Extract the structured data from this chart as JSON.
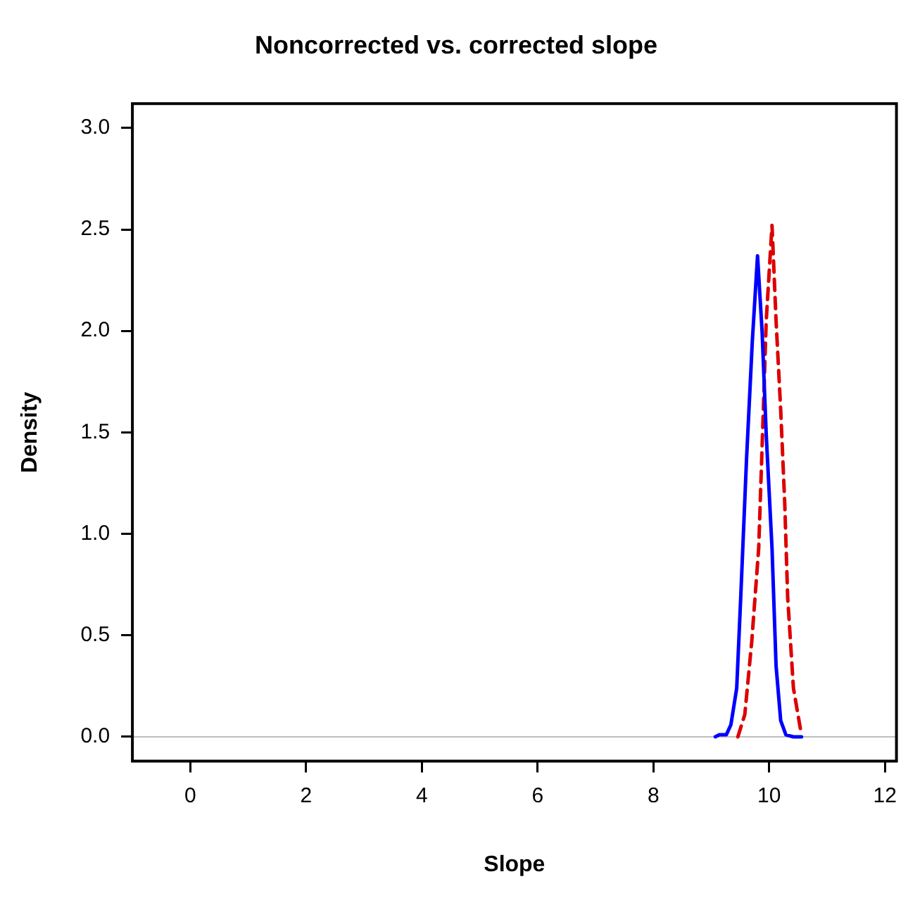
{
  "chart_data": {
    "type": "line",
    "title": "Noncorrected vs. corrected slope",
    "xlabel": "Slope",
    "ylabel": "Density",
    "xlim": [
      -1,
      12.2
    ],
    "xticks": [
      0,
      2,
      4,
      6,
      8,
      10,
      12
    ],
    "ylim": [
      -0.12,
      3.12
    ],
    "yticks": [
      {
        "value": 0,
        "label": "0.0"
      },
      {
        "value": 0.5,
        "label": "0.5"
      },
      {
        "value": 1,
        "label": "1.0"
      },
      {
        "value": 1.5,
        "label": "1.5"
      },
      {
        "value": 2,
        "label": "2.0"
      },
      {
        "value": 2.5,
        "label": "2.5"
      },
      {
        "value": 3,
        "label": "3.0"
      }
    ],
    "grid": false,
    "legend": false,
    "marker": "none",
    "ref_lines": [
      {
        "axis": "y",
        "value": 0,
        "color": "#bebebe",
        "line_style": "solid"
      }
    ],
    "series": [
      {
        "color": "#0000ff",
        "line_style": "solid",
        "x": [
          9.07,
          9.14,
          9.26,
          9.34,
          9.44,
          9.51,
          9.61,
          9.71,
          9.8,
          9.88,
          9.95,
          10.05,
          10.12,
          10.2,
          10.29,
          10.42,
          10.56
        ],
        "values": [
          0,
          0.01,
          0.01,
          0.06,
          0.24,
          0.69,
          1.37,
          1.95,
          2.37,
          1.99,
          1.49,
          0.93,
          0.35,
          0.08,
          0.01,
          0,
          0
        ]
      },
      {
        "color": "#dd0000",
        "line_style": "dashed",
        "x": [
          9.46,
          9.58,
          9.7,
          9.82,
          9.9,
          9.95,
          10.05,
          10.12,
          10.2,
          10.27,
          10.32,
          10.42,
          10.54,
          10.56
        ],
        "values": [
          0,
          0.11,
          0.47,
          0.93,
          1.61,
          2.05,
          2.52,
          2.05,
          1.61,
          1.15,
          0.69,
          0.24,
          0.04,
          0.01
        ]
      }
    ]
  }
}
